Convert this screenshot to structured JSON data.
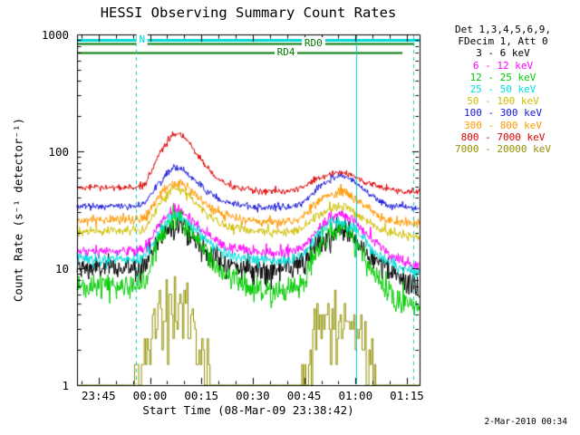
{
  "legend": {
    "headers": [
      "Det 1,3,4,5,6,9,",
      "FDecim 1, Att 0"
    ]
  },
  "footer": {
    "timestamp": "2-Mar-2010 00:34"
  },
  "chart_data": {
    "type": "line",
    "title": "HESSI Observing Summary Count Rates",
    "xlabel": "Start Time (08-Mar-09 23:38:42)",
    "ylabel": "Count Rate (s⁻¹ detector⁻¹)",
    "x_axis": {
      "unit": "minutes since 08-Mar-09 23:38:42",
      "min": 0,
      "max": 100,
      "ticks": [
        {
          "t": 6.3,
          "label": "23:45"
        },
        {
          "t": 21.3,
          "label": "00:00"
        },
        {
          "t": 36.3,
          "label": "00:15"
        },
        {
          "t": 51.3,
          "label": "00:30"
        },
        {
          "t": 66.3,
          "label": "00:45"
        },
        {
          "t": 81.3,
          "label": "01:00"
        },
        {
          "t": 96.3,
          "label": "01:15"
        }
      ],
      "minor_tick_every": 5
    },
    "y_axis": {
      "scale": "log",
      "min": 1,
      "max": 1000,
      "ticks": [
        {
          "v": 1000,
          "label": "1000"
        },
        {
          "v": 100,
          "label": "100"
        },
        {
          "v": 10,
          "label": "10"
        },
        {
          "v": 1,
          "label": "1"
        }
      ]
    },
    "series": [
      {
        "name": "3 - 6 keV",
        "color": "#000000",
        "noise": 0.12,
        "points": [
          [
            0,
            10
          ],
          [
            17,
            10
          ],
          [
            20,
            11
          ],
          [
            24,
            18
          ],
          [
            28,
            24
          ],
          [
            31,
            23
          ],
          [
            34,
            18
          ],
          [
            38,
            13.5
          ],
          [
            42,
            11.5
          ],
          [
            46,
            10.3
          ],
          [
            52,
            9.7
          ],
          [
            58,
            9.6
          ],
          [
            63,
            10
          ],
          [
            66,
            11
          ],
          [
            70,
            15
          ],
          [
            74,
            19
          ],
          [
            77,
            21
          ],
          [
            80,
            19
          ],
          [
            84,
            14
          ],
          [
            88,
            11
          ],
          [
            92,
            9
          ],
          [
            96,
            7.5
          ],
          [
            100,
            7
          ]
        ]
      },
      {
        "name": "6 - 12 keV",
        "color": "#ff00ff",
        "noise": 0.055,
        "points": [
          [
            0,
            14
          ],
          [
            17,
            14
          ],
          [
            20,
            15
          ],
          [
            24,
            24
          ],
          [
            28,
            31
          ],
          [
            31,
            30
          ],
          [
            34,
            25
          ],
          [
            38,
            19.5
          ],
          [
            42,
            16
          ],
          [
            46,
            14.7
          ],
          [
            52,
            13.8
          ],
          [
            58,
            13.6
          ],
          [
            63,
            14
          ],
          [
            66,
            15
          ],
          [
            70,
            21
          ],
          [
            74,
            27
          ],
          [
            77,
            29
          ],
          [
            80,
            27
          ],
          [
            84,
            20
          ],
          [
            88,
            16
          ],
          [
            92,
            13
          ],
          [
            96,
            11
          ],
          [
            100,
            10.5
          ]
        ]
      },
      {
        "name": "12 - 25 keV",
        "color": "#00cc00",
        "noise": 0.13,
        "points": [
          [
            0,
            7
          ],
          [
            17,
            7
          ],
          [
            20,
            8
          ],
          [
            24,
            18
          ],
          [
            28,
            26
          ],
          [
            31,
            25
          ],
          [
            34,
            19
          ],
          [
            38,
            13
          ],
          [
            42,
            9.5
          ],
          [
            46,
            7.8
          ],
          [
            52,
            6.6
          ],
          [
            58,
            6.4
          ],
          [
            63,
            6.8
          ],
          [
            66,
            8
          ],
          [
            70,
            14
          ],
          [
            74,
            20
          ],
          [
            77,
            22
          ],
          [
            80,
            20
          ],
          [
            84,
            12
          ],
          [
            88,
            8
          ],
          [
            92,
            6
          ],
          [
            96,
            5
          ],
          [
            100,
            4.8
          ]
        ]
      },
      {
        "name": "25 - 50 keV",
        "color": "#00dede",
        "noise": 0.06,
        "points": [
          [
            0,
            12
          ],
          [
            17,
            12
          ],
          [
            20,
            13
          ],
          [
            24,
            21
          ],
          [
            28,
            28
          ],
          [
            31,
            27
          ],
          [
            34,
            22
          ],
          [
            38,
            17
          ],
          [
            42,
            14
          ],
          [
            46,
            12.6
          ],
          [
            52,
            11.8
          ],
          [
            58,
            11.7
          ],
          [
            63,
            12
          ],
          [
            66,
            13
          ],
          [
            70,
            19
          ],
          [
            74,
            24
          ],
          [
            77,
            25
          ],
          [
            80,
            23
          ],
          [
            84,
            17
          ],
          [
            88,
            13
          ],
          [
            92,
            11
          ],
          [
            96,
            9.5
          ],
          [
            100,
            9
          ]
        ]
      },
      {
        "name": "50 - 100 keV",
        "color": "#cfc000",
        "noise": 0.045,
        "points": [
          [
            0,
            21
          ],
          [
            17,
            21
          ],
          [
            20,
            22
          ],
          [
            24,
            36
          ],
          [
            28,
            48
          ],
          [
            31,
            46
          ],
          [
            34,
            38
          ],
          [
            38,
            29
          ],
          [
            42,
            24
          ],
          [
            46,
            22
          ],
          [
            52,
            20.6
          ],
          [
            58,
            20.4
          ],
          [
            63,
            20.8
          ],
          [
            66,
            22
          ],
          [
            70,
            28
          ],
          [
            74,
            33
          ],
          [
            77,
            34
          ],
          [
            80,
            32
          ],
          [
            84,
            26
          ],
          [
            88,
            22
          ],
          [
            92,
            20
          ],
          [
            96,
            19
          ],
          [
            100,
            18.5
          ]
        ]
      },
      {
        "name": "100 - 300 keV",
        "color": "#1515d8",
        "noise": 0.035,
        "points": [
          [
            0,
            34
          ],
          [
            17,
            34
          ],
          [
            20,
            36
          ],
          [
            24,
            55
          ],
          [
            28,
            72
          ],
          [
            31,
            69
          ],
          [
            34,
            58
          ],
          [
            38,
            45
          ],
          [
            42,
            38
          ],
          [
            46,
            35
          ],
          [
            52,
            33.5
          ],
          [
            58,
            33.2
          ],
          [
            63,
            33.6
          ],
          [
            66,
            36
          ],
          [
            70,
            48
          ],
          [
            74,
            58
          ],
          [
            77,
            61
          ],
          [
            80,
            58
          ],
          [
            84,
            46
          ],
          [
            88,
            38
          ],
          [
            92,
            34
          ],
          [
            96,
            33
          ],
          [
            100,
            32.5
          ]
        ]
      },
      {
        "name": "300 - 800 keV",
        "color": "#ff9900",
        "noise": 0.05,
        "points": [
          [
            0,
            26
          ],
          [
            17,
            26
          ],
          [
            20,
            27
          ],
          [
            24,
            42
          ],
          [
            28,
            55
          ],
          [
            31,
            53
          ],
          [
            34,
            44
          ],
          [
            38,
            34
          ],
          [
            42,
            29
          ],
          [
            46,
            27
          ],
          [
            52,
            25.2
          ],
          [
            58,
            25
          ],
          [
            63,
            25.4
          ],
          [
            66,
            27
          ],
          [
            70,
            37
          ],
          [
            74,
            44
          ],
          [
            77,
            46
          ],
          [
            80,
            43
          ],
          [
            84,
            34
          ],
          [
            88,
            28
          ],
          [
            92,
            25.5
          ],
          [
            96,
            24.5
          ],
          [
            100,
            24
          ]
        ]
      },
      {
        "name": "800 - 7000 keV",
        "color": "#dd0000",
        "noise": 0.032,
        "points": [
          [
            0,
            49
          ],
          [
            17,
            49
          ],
          [
            20,
            52
          ],
          [
            24,
            95
          ],
          [
            28,
            140
          ],
          [
            30,
            142
          ],
          [
            33,
            117
          ],
          [
            36,
            85
          ],
          [
            40,
            62
          ],
          [
            44,
            52
          ],
          [
            48,
            47.5
          ],
          [
            54,
            45.8
          ],
          [
            60,
            45.8
          ],
          [
            63,
            46.5
          ],
          [
            66,
            49
          ],
          [
            70,
            58
          ],
          [
            74,
            64
          ],
          [
            77,
            66
          ],
          [
            80,
            63
          ],
          [
            84,
            55
          ],
          [
            88,
            50
          ],
          [
            92,
            47
          ],
          [
            96,
            45
          ],
          [
            100,
            44
          ]
        ]
      },
      {
        "name": "7000 - 20000 keV",
        "color": "#909000",
        "noise": 0.35,
        "step": true,
        "quantize": 0.5,
        "dt": 0.4,
        "points": [
          [
            0,
            1
          ],
          [
            16.5,
            1
          ],
          [
            18,
            1.4
          ],
          [
            21,
            2.4
          ],
          [
            24,
            3.6
          ],
          [
            27,
            4.1
          ],
          [
            30,
            4.1
          ],
          [
            33,
            3.2
          ],
          [
            35,
            2.2
          ],
          [
            37,
            1.4
          ],
          [
            38.5,
            1
          ],
          [
            65,
            1
          ],
          [
            67,
            1.4
          ],
          [
            70,
            2.4
          ],
          [
            73,
            3.3
          ],
          [
            76,
            3.7
          ],
          [
            79,
            3.7
          ],
          [
            82,
            3
          ],
          [
            84,
            2.2
          ],
          [
            86,
            1.4
          ],
          [
            88,
            1
          ],
          [
            100,
            1
          ]
        ]
      }
    ],
    "flag_bars": [
      {
        "label": "N",
        "color": "#00d8d8",
        "value": 900,
        "t_start": 0,
        "t_end": 100,
        "t_label": 19,
        "width": 3
      },
      {
        "label": "RD0",
        "color": "#007700",
        "value": 830,
        "t_start": 0,
        "t_end": 98.5,
        "t_label": 69,
        "width": 2
      },
      {
        "label": "RD4",
        "color": "#007700",
        "value": 700,
        "t_start": 0,
        "t_end": 95,
        "t_label": 61,
        "width": 2
      }
    ],
    "event_lines": [
      {
        "t": 17.2,
        "style": "dashed",
        "color": "#00cccc"
      },
      {
        "t": 81.5,
        "style": "solid",
        "color": "#00cccc"
      },
      {
        "t": 98.1,
        "style": "dashed",
        "color": "#00cccc"
      }
    ]
  }
}
